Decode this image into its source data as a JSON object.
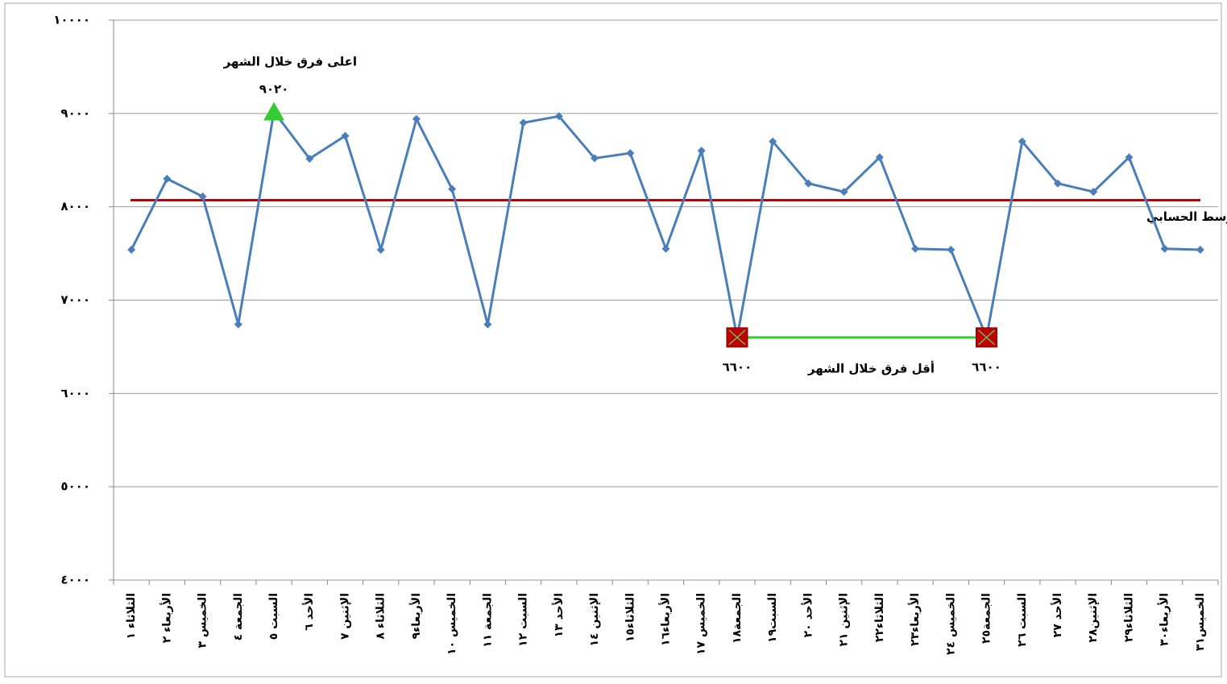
{
  "chart_data": {
    "type": "line",
    "categories": [
      "الثلاثاء ١",
      "الأربعاء ٢",
      "الخميس ٣",
      "الجمعة ٤",
      "السبت ٥",
      "الأحد ٦",
      "الإثنين ٧",
      "الثلاثاء ٨",
      "الأربعاء٩",
      "الخميس ١٠",
      "الجمعة ١١",
      "السبت ١٢",
      "الأحد ١٣",
      "الإثنين ١٤",
      "الثلاثاء١٥",
      "الأربعاء١٦",
      "الخميس ١٧",
      "الجمعة١٨",
      "السبت١٩",
      "الأحد ٢٠",
      "الإثنين ٢١",
      "الثلاثاء٢٢",
      "الأربعاء٢٣",
      "الخميس ٢٤",
      "الجمعة٢٥",
      "السبت ٢٦",
      "الأحد ٢٧",
      "الإثنين٢٨",
      "الثلاثاء٢٩",
      "الأربعاء٣٠",
      "الخميس٣١"
    ],
    "values": [
      7540,
      8300,
      8110,
      6740,
      9020,
      8515,
      8760,
      7540,
      8940,
      8190,
      6740,
      8900,
      8970,
      8520,
      8575,
      7550,
      8600,
      6600,
      8700,
      8250,
      8160,
      8530,
      7550,
      7540,
      6600,
      8700,
      8250,
      8160,
      8530,
      7550,
      7540
    ],
    "color": "#4a7ebb",
    "ylim": [
      4000,
      10000
    ],
    "yticks": [
      {
        "value": 4000,
        "label": "٤٠٠٠"
      },
      {
        "value": 5000,
        "label": "٥٠٠٠"
      },
      {
        "value": 6000,
        "label": "٦٠٠٠"
      },
      {
        "value": 7000,
        "label": "٧٠٠٠"
      },
      {
        "value": 8000,
        "label": "٨٠٠٠"
      },
      {
        "value": 9000,
        "label": "٩٠٠٠"
      },
      {
        "value": 10000,
        "label": "١٠٠٠٠"
      }
    ],
    "grid": true,
    "mean": {
      "value": 8070,
      "label": "المتوسط الحسابي",
      "color": "#c00000"
    },
    "max_note": {
      "text": "اعلى  فرق خلال الشهر",
      "value": 9020,
      "value_label": "٩٠٢٠",
      "color": "#33cc33"
    },
    "min_note": {
      "text": "أقل  فرق خلال الشهر",
      "value": 6600,
      "value_labels": [
        "٦٦٠٠",
        "٦٦٠٠"
      ],
      "color": "#c00000",
      "link_color": "#33cc33"
    }
  }
}
